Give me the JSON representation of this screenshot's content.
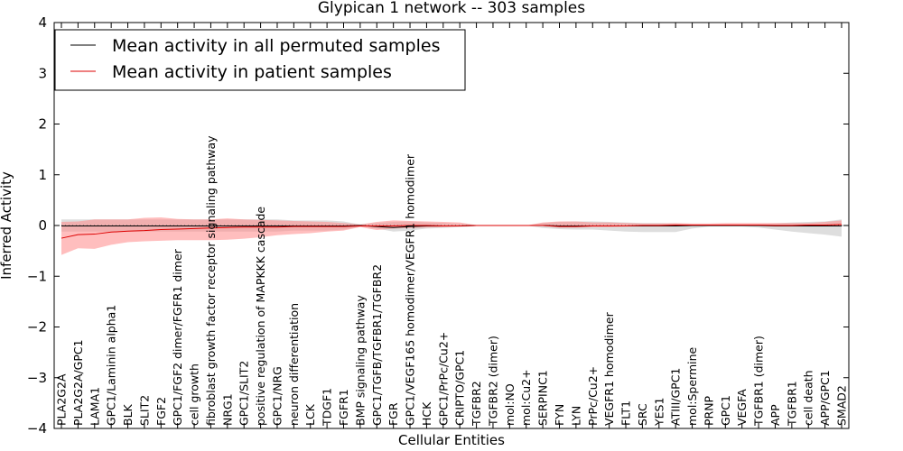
{
  "chart_data": {
    "type": "line",
    "title": "Glypican 1 network -- 303 samples",
    "xlabel": "Cellular Entities",
    "ylabel": "Inferred Activity",
    "ylim": [
      -4,
      4
    ],
    "yticks": [
      4,
      3,
      2,
      1,
      0,
      -1,
      -2,
      -3,
      -4
    ],
    "ytick_labels": [
      "4",
      "3",
      "2",
      "1",
      "0",
      "−1",
      "−2",
      "−3",
      "−4"
    ],
    "grid": false,
    "legend_position": "top-left",
    "categories": [
      "PLA2G2A",
      "PLA2G2A/GPC1",
      "LAMA1",
      "GPC1/Laminin alpha1",
      "BLK",
      "SLIT2",
      "FGF2",
      "GPC1/FGF2 dimer/FGFR1 dimer",
      "cell growth",
      "fibroblast growth factor receptor signaling pathway",
      "NRG1",
      "GPC1/SLIT2",
      "positive regulation of MAPKKK cascade",
      "GPC1/NRG",
      "neuron differentiation",
      "LCK",
      "TDGF1",
      "FGFR1",
      "BMP signaling pathway",
      "GPC1/TGFB/TGFBR1/TGFBR2",
      "FGR",
      "GPC1/VEGF165 homodimer/VEGFR1 homodimer",
      "HCK",
      "GPC1/PrPc/Cu2+",
      "CRIPTO/GPC1",
      "TGFBR2",
      "TGFBR2 (dimer)",
      "mol:NO",
      "mol:Cu2+",
      "SERPINC1",
      "FYN",
      "LYN",
      "PrPc/Cu2+",
      "VEGFR1 homodimer",
      "FLT1",
      "SRC",
      "YES1",
      "ATIII/GPC1",
      "mol:Spermine",
      "PRNP",
      "GPC1",
      "VEGFA",
      "TGFBR1 (dimer)",
      "APP",
      "TGFBR1",
      "cell death",
      "APP/GPC1",
      "SMAD2"
    ],
    "series": [
      {
        "name": "Mean activity in all permuted samples",
        "color": "#000000",
        "band_color": "#c8c8c8",
        "values": [
          -0.01,
          -0.01,
          -0.01,
          -0.01,
          -0.01,
          -0.01,
          -0.01,
          -0.01,
          -0.01,
          -0.01,
          -0.01,
          -0.01,
          -0.01,
          -0.01,
          -0.01,
          -0.01,
          -0.01,
          -0.01,
          0.0,
          -0.02,
          -0.04,
          -0.02,
          -0.01,
          -0.01,
          -0.01,
          0.0,
          0.0,
          0.0,
          0.0,
          0.0,
          -0.01,
          -0.01,
          -0.01,
          -0.01,
          -0.01,
          -0.01,
          -0.01,
          -0.01,
          0.0,
          0.0,
          0.0,
          0.0,
          0.0,
          -0.01,
          -0.01,
          -0.01,
          -0.01,
          -0.01
        ],
        "lower": [
          -0.12,
          -0.12,
          -0.12,
          -0.12,
          -0.12,
          -0.12,
          -0.12,
          -0.12,
          -0.12,
          -0.12,
          -0.12,
          -0.12,
          -0.12,
          -0.12,
          -0.1,
          -0.1,
          -0.1,
          -0.08,
          -0.02,
          -0.06,
          -0.12,
          -0.1,
          -0.06,
          -0.05,
          -0.03,
          -0.01,
          -0.01,
          0.0,
          0.0,
          -0.05,
          -0.07,
          -0.08,
          -0.08,
          -0.1,
          -0.12,
          -0.13,
          -0.13,
          -0.13,
          -0.06,
          -0.02,
          -0.02,
          -0.02,
          -0.04,
          -0.08,
          -0.12,
          -0.15,
          -0.18,
          -0.22
        ],
        "upper": [
          0.12,
          0.12,
          0.12,
          0.12,
          0.12,
          0.12,
          0.12,
          0.12,
          0.12,
          0.12,
          0.12,
          0.12,
          0.12,
          0.12,
          0.1,
          0.1,
          0.1,
          0.08,
          0.02,
          0.05,
          0.07,
          0.08,
          0.06,
          0.05,
          0.03,
          0.01,
          0.01,
          0.0,
          0.0,
          0.05,
          0.07,
          0.08,
          0.08,
          0.07,
          0.06,
          0.05,
          0.05,
          0.04,
          0.02,
          0.01,
          0.01,
          0.01,
          0.02,
          0.04,
          0.06,
          0.07,
          0.08,
          0.12
        ]
      },
      {
        "name": "Mean activity in patient samples",
        "color": "#dd0000",
        "band_color": "#ff8888",
        "values": [
          -0.25,
          -0.18,
          -0.17,
          -0.13,
          -0.11,
          -0.1,
          -0.08,
          -0.07,
          -0.06,
          -0.05,
          -0.04,
          -0.03,
          -0.03,
          -0.03,
          -0.02,
          -0.02,
          -0.02,
          -0.02,
          -0.01,
          -0.01,
          -0.01,
          0.0,
          0.0,
          -0.01,
          -0.01,
          0.0,
          0.0,
          0.0,
          0.0,
          0.0,
          -0.02,
          -0.02,
          -0.01,
          -0.01,
          -0.01,
          0.0,
          0.0,
          0.01,
          0.01,
          0.01,
          0.01,
          0.01,
          0.01,
          0.0,
          0.0,
          0.01,
          0.01,
          0.02
        ],
        "lower": [
          -0.58,
          -0.45,
          -0.46,
          -0.38,
          -0.33,
          -0.31,
          -0.3,
          -0.29,
          -0.29,
          -0.29,
          -0.28,
          -0.26,
          -0.23,
          -0.19,
          -0.17,
          -0.15,
          -0.12,
          -0.1,
          -0.03,
          -0.09,
          -0.06,
          -0.05,
          -0.04,
          -0.03,
          -0.02,
          -0.01,
          -0.01,
          0.0,
          0.0,
          -0.01,
          -0.04,
          -0.04,
          -0.03,
          -0.03,
          -0.02,
          -0.01,
          -0.01,
          0.0,
          0.0,
          0.0,
          0.0,
          0.0,
          0.0,
          0.0,
          0.0,
          0.0,
          0.0,
          0.0
        ],
        "upper": [
          0.07,
          0.08,
          0.12,
          0.12,
          0.12,
          0.15,
          0.16,
          0.13,
          0.12,
          0.12,
          0.14,
          0.12,
          0.11,
          0.1,
          0.09,
          0.08,
          0.07,
          0.05,
          0.02,
          0.07,
          0.1,
          0.09,
          0.08,
          0.07,
          0.06,
          0.01,
          0.01,
          0.0,
          0.0,
          0.06,
          0.08,
          0.08,
          0.06,
          0.06,
          0.05,
          0.04,
          0.04,
          0.05,
          0.04,
          0.04,
          0.05,
          0.05,
          0.05,
          0.05,
          0.05,
          0.05,
          0.07,
          0.1
        ]
      }
    ]
  }
}
